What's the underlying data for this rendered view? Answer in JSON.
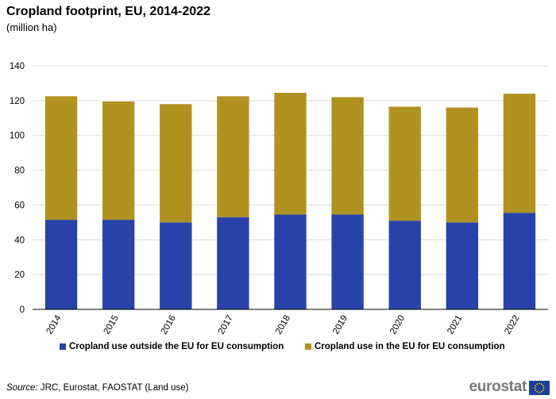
{
  "title": "Cropland footprint, EU, 2014-2022",
  "subtitle": "(million  ha)",
  "source_label": "Source:",
  "source_text": " JRC, Eurostat, FAOSTAT (Land use)",
  "brand": "eurostat",
  "chart_data": {
    "type": "bar",
    "stacked": true,
    "categories": [
      "2014",
      "2015",
      "2016",
      "2017",
      "2018",
      "2019",
      "2020",
      "2021",
      "2022"
    ],
    "series": [
      {
        "name": "Cropland use outside the EU for EU consumption",
        "color": "#2743aa",
        "values": [
          51.5,
          51.5,
          50.0,
          53.0,
          54.5,
          54.5,
          51.0,
          50.0,
          55.5
        ]
      },
      {
        "name": "Cropland use in the EU for EU consumption",
        "color": "#b09220",
        "values": [
          71.0,
          68.0,
          68.0,
          69.5,
          70.0,
          67.5,
          65.5,
          66.0,
          68.5
        ]
      }
    ],
    "ylim": [
      0,
      140
    ],
    "yticks": [
      0,
      20,
      40,
      60,
      80,
      100,
      120,
      140
    ],
    "grid": true,
    "legend_position": "bottom",
    "xlabel": "",
    "ylabel": ""
  }
}
